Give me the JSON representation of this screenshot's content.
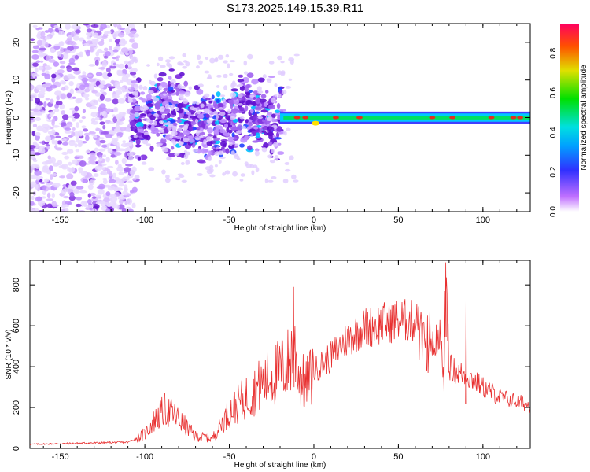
{
  "title": "S173.2025.149.15.39.R11",
  "colors": {
    "snr_line": "#e83030",
    "axis": "#000000",
    "background": "#ffffff"
  },
  "chart_data": [
    {
      "type": "heatmap",
      "xlabel": "Height of straight line (km)",
      "ylabel": "Frequency (Hz)",
      "xlim": [
        -168,
        128
      ],
      "ylim": [
        -25,
        25
      ],
      "x_ticks": [
        -150,
        -100,
        -50,
        0,
        50,
        100
      ],
      "y_ticks": [
        -20,
        -10,
        0,
        10,
        20
      ],
      "colorbar": {
        "label": "Normalized spectral amplitude",
        "range": [
          0,
          0.95
        ],
        "ticks": [
          0.0,
          0.2,
          0.4,
          0.6,
          0.8
        ],
        "tick_labels": [
          "0.0",
          "0.2",
          "0.4",
          "0.6",
          "0.8"
        ],
        "colormap": "rainbow"
      },
      "regions": [
        {
          "from_km": -168,
          "to_km": -105,
          "description_value": "diffuse scattered energy, amplitude ~0.05-0.15"
        },
        {
          "from_km": -105,
          "to_km": -20,
          "description_value": "clustered energy, amplitude ~0.15-0.35"
        },
        {
          "from_km": -20,
          "to_km": 128,
          "description_value": "narrow band near 0 Hz, amplitude ~0.3-0.9"
        }
      ]
    },
    {
      "type": "line",
      "xlabel": "Height of straight line (km)",
      "ylabel": "SNR (10 * v/v)",
      "xlim": [
        -168,
        128
      ],
      "ylim": [
        0,
        920
      ],
      "x_ticks": [
        -150,
        -100,
        -50,
        0,
        50,
        100
      ],
      "y_ticks": [
        0,
        200,
        400,
        600,
        800
      ],
      "series": [
        {
          "x": [
            -168,
            -140,
            -110,
            -100,
            -95,
            -88,
            -82,
            -75,
            -70,
            -60,
            -50,
            -40,
            -30,
            -20,
            -15,
            -12,
            -8,
            -5,
            0,
            10,
            20,
            30,
            40,
            50,
            60,
            70,
            75,
            77,
            78,
            80,
            85,
            90,
            95,
            100,
            110,
            120,
            128
          ],
          "y": [
            20,
            25,
            30,
            70,
            130,
            190,
            160,
            100,
            60,
            50,
            180,
            250,
            320,
            380,
            420,
            500,
            350,
            300,
            380,
            450,
            540,
            590,
            610,
            630,
            620,
            580,
            560,
            300,
            910,
            400,
            370,
            360,
            330,
            300,
            250,
            230,
            210
          ]
        }
      ],
      "annotations": [
        {
          "x": -12,
          "y": 790
        },
        {
          "x": 78,
          "y": 910
        },
        {
          "x": 90,
          "y": 720
        }
      ]
    }
  ]
}
